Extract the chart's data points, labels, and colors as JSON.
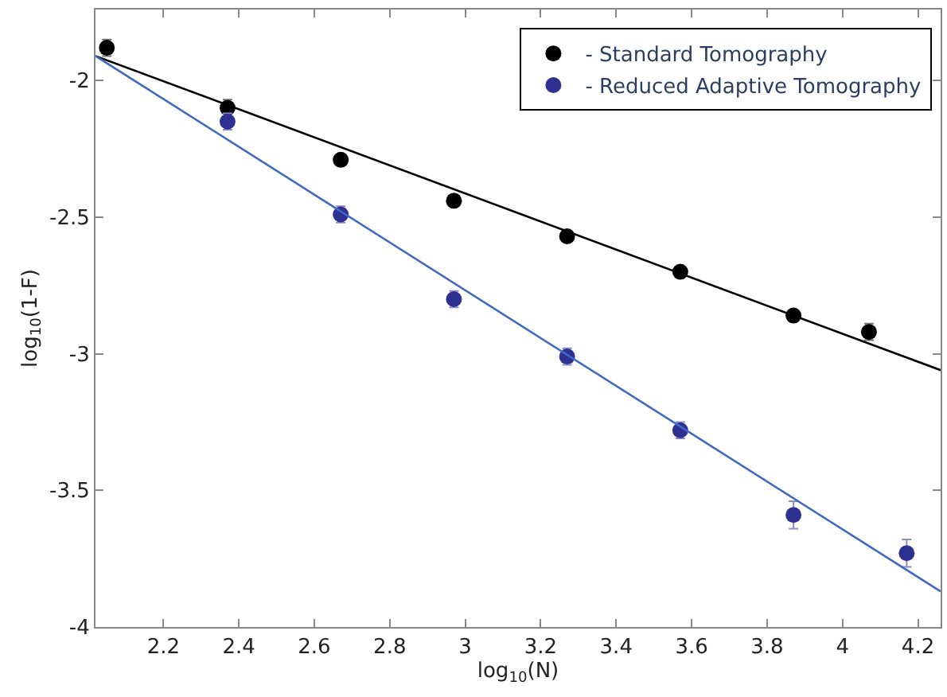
{
  "chart_data": {
    "type": "scatter",
    "xlabel": "log$_{10}$(N)",
    "ylabel": "log$_{10}$(1-F)",
    "xlim": [
      2.02,
      4.26
    ],
    "xticks": [
      2.2,
      2.4,
      2.6,
      2.8,
      3,
      3.2,
      3.4,
      3.6,
      3.8,
      4,
      4.2
    ],
    "ylim": [
      -4.0,
      -1.74
    ],
    "yticks": [
      -2,
      -2.5,
      -3,
      -3.5,
      -4
    ],
    "legend": "top right",
    "marker": "circle",
    "series": [
      {
        "name": "- Standard Tomography",
        "color": "#000000",
        "x": [
          2.05,
          2.37,
          2.67,
          2.97,
          3.27,
          3.57,
          3.87,
          4.07
        ],
        "values": [
          -1.88,
          -2.1,
          -2.29,
          -2.44,
          -2.57,
          -2.7,
          -2.86,
          -2.92
        ],
        "errors": [
          0.03,
          0.03,
          0.02,
          0.02,
          0.02,
          0.02,
          0.02,
          0.03
        ]
      },
      {
        "name": "- Reduced Adaptive Tomography",
        "color": "#2e3192",
        "x": [
          2.37,
          2.67,
          2.97,
          3.27,
          3.57,
          3.87,
          4.17
        ],
        "values": [
          -2.15,
          -2.49,
          -2.8,
          -3.01,
          -3.28,
          -3.59,
          -3.73
        ],
        "errors": [
          0.03,
          0.03,
          0.03,
          0.03,
          0.03,
          0.05,
          0.05
        ]
      },
      {
        "type": "line",
        "marker": "none",
        "color": "#000000",
        "x": [
          2.02,
          4.26
        ],
        "values": [
          -1.91,
          -3.06
        ]
      },
      {
        "type": "line",
        "marker": "none",
        "color": "#4169c4",
        "x": [
          2.02,
          4.26
        ],
        "values": [
          -1.91,
          -3.87
        ]
      }
    ]
  }
}
